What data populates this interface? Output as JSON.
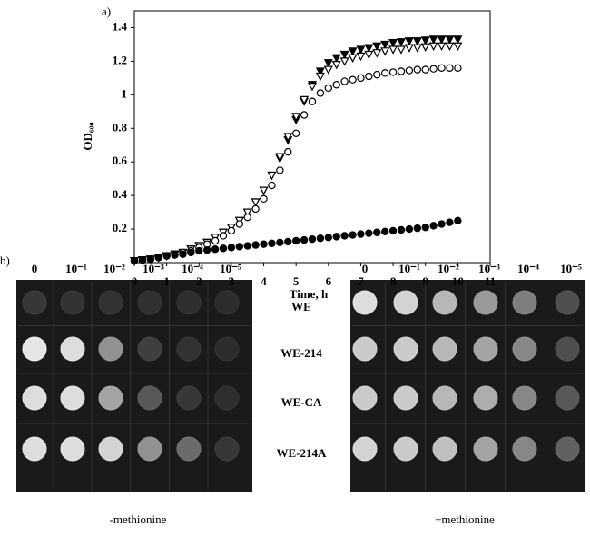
{
  "chart_data": {
    "type": "scatter",
    "panel_label": "a)",
    "x_label": "Time, h",
    "y_label": "OD₆₀₀",
    "x": [
      0,
      0.25,
      0.5,
      0.75,
      1,
      1.25,
      1.5,
      1.75,
      2,
      2.25,
      2.5,
      2.75,
      3,
      3.25,
      3.5,
      3.75,
      4,
      4.25,
      4.5,
      4.75,
      5,
      5.25,
      5.5,
      5.75,
      6,
      6.25,
      6.5,
      6.75,
      7,
      7.25,
      7.5,
      7.75,
      8,
      8.25,
      8.5,
      8.75,
      9,
      9.25,
      9.5,
      9.75,
      10
    ],
    "series": [
      {
        "marker": "triangle-down",
        "filled": true,
        "color": "#000000",
        "values": [
          0.01,
          0.015,
          0.02,
          0.03,
          0.04,
          0.05,
          0.06,
          0.08,
          0.1,
          0.12,
          0.15,
          0.18,
          0.21,
          0.25,
          0.3,
          0.36,
          0.43,
          0.52,
          0.62,
          0.73,
          0.85,
          0.96,
          1.06,
          1.14,
          1.19,
          1.22,
          1.24,
          1.26,
          1.27,
          1.28,
          1.29,
          1.3,
          1.31,
          1.315,
          1.32,
          1.32,
          1.325,
          1.33,
          1.33,
          1.33,
          1.33
        ]
      },
      {
        "marker": "triangle-down",
        "filled": false,
        "color": "#000000",
        "values": [
          0.01,
          0.015,
          0.02,
          0.03,
          0.04,
          0.05,
          0.06,
          0.08,
          0.1,
          0.12,
          0.15,
          0.18,
          0.21,
          0.25,
          0.3,
          0.36,
          0.43,
          0.52,
          0.63,
          0.75,
          0.87,
          0.97,
          1.05,
          1.11,
          1.15,
          1.18,
          1.2,
          1.22,
          1.23,
          1.24,
          1.25,
          1.26,
          1.27,
          1.27,
          1.28,
          1.28,
          1.285,
          1.29,
          1.29,
          1.29,
          1.29
        ]
      },
      {
        "marker": "circle",
        "filled": false,
        "color": "#000000",
        "values": [
          0.01,
          0.015,
          0.02,
          0.03,
          0.04,
          0.05,
          0.06,
          0.07,
          0.09,
          0.11,
          0.13,
          0.16,
          0.19,
          0.23,
          0.27,
          0.32,
          0.38,
          0.46,
          0.55,
          0.66,
          0.77,
          0.88,
          0.96,
          1.01,
          1.04,
          1.06,
          1.08,
          1.09,
          1.1,
          1.11,
          1.12,
          1.13,
          1.135,
          1.14,
          1.145,
          1.15,
          1.15,
          1.155,
          1.16,
          1.16,
          1.16
        ]
      },
      {
        "marker": "circle",
        "filled": true,
        "color": "#000000",
        "values": [
          0.01,
          0.015,
          0.02,
          0.03,
          0.04,
          0.045,
          0.05,
          0.06,
          0.07,
          0.075,
          0.08,
          0.085,
          0.09,
          0.095,
          0.1,
          0.105,
          0.11,
          0.115,
          0.12,
          0.125,
          0.13,
          0.135,
          0.14,
          0.145,
          0.15,
          0.155,
          0.16,
          0.165,
          0.17,
          0.175,
          0.18,
          0.185,
          0.19,
          0.195,
          0.2,
          0.205,
          0.21,
          0.22,
          0.23,
          0.24,
          0.25
        ]
      }
    ],
    "xlim": [
      0,
      11
    ],
    "xticks": [
      0,
      1,
      2,
      3,
      4,
      5,
      6,
      7,
      8,
      9,
      10,
      11
    ],
    "ylim": [
      0,
      1.5
    ],
    "yticks": [
      0.2,
      0.4,
      0.6,
      0.8,
      1.0,
      1.2,
      1.4
    ],
    "grid": false
  },
  "panel_b": {
    "panel_label": "b)",
    "columns_left": [
      "0",
      "10⁻¹",
      "10⁻²",
      "10⁻³",
      "10⁻⁴",
      "10⁻⁵"
    ],
    "columns_right": [
      "0",
      "10⁻¹",
      "10⁻²",
      "10⁻³",
      "10⁻⁴",
      "10⁻⁵"
    ],
    "rows": [
      "WE",
      "WE-214",
      "WE-CA",
      "WE-214A"
    ],
    "caption_left": "-methionine",
    "caption_right": "+methionine"
  }
}
